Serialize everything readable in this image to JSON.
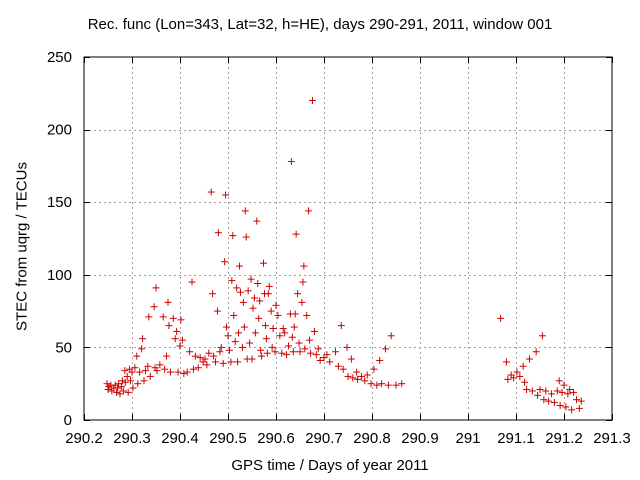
{
  "chart_data": {
    "type": "scatter",
    "title": "Rec. func (Lon=343, Lat=32, h=HE), days 290-291, 2011, window 001",
    "xlabel": "GPS time / Days of year 2011",
    "ylabel": "STEC from uqrg / TECUs",
    "xlim": [
      290.2,
      291.3
    ],
    "ylim": [
      0,
      250
    ],
    "xticks": [
      290.2,
      290.3,
      290.4,
      290.5,
      290.6,
      290.7,
      290.8,
      290.9,
      291,
      291.1,
      291.2,
      291.3
    ],
    "xtick_labels": [
      "290.2",
      "290.3",
      "290.4",
      "290.5",
      "290.6",
      "290.7",
      "290.8",
      "290.9",
      "291",
      "291.1",
      "291.2",
      "291.3"
    ],
    "yticks": [
      0,
      50,
      100,
      150,
      200,
      250
    ],
    "ytick_labels": [
      "0",
      "50",
      "100",
      "150",
      "200",
      "250"
    ],
    "grid": true,
    "marker": "+",
    "color": "#cc0000",
    "points": [
      [
        290.248,
        25
      ],
      [
        290.25,
        21
      ],
      [
        290.252,
        23
      ],
      [
        290.256,
        24
      ],
      [
        290.258,
        20
      ],
      [
        290.262,
        22
      ],
      [
        290.265,
        24
      ],
      [
        290.268,
        19
      ],
      [
        290.27,
        22
      ],
      [
        290.272,
        25
      ],
      [
        290.275,
        18
      ],
      [
        290.278,
        23
      ],
      [
        290.28,
        27
      ],
      [
        290.282,
        20
      ],
      [
        290.285,
        34
      ],
      [
        290.286,
        26
      ],
      [
        290.29,
        30
      ],
      [
        290.292,
        19
      ],
      [
        290.295,
        35
      ],
      [
        290.297,
        27
      ],
      [
        290.3,
        33
      ],
      [
        290.302,
        22
      ],
      [
        290.306,
        36
      ],
      [
        290.31,
        44
      ],
      [
        290.312,
        25
      ],
      [
        290.316,
        33
      ],
      [
        290.32,
        49
      ],
      [
        290.322,
        56
      ],
      [
        290.325,
        27
      ],
      [
        290.328,
        34
      ],
      [
        290.333,
        37
      ],
      [
        290.335,
        71
      ],
      [
        290.338,
        30
      ],
      [
        290.346,
        78
      ],
      [
        290.348,
        36
      ],
      [
        290.35,
        91
      ],
      [
        290.352,
        34
      ],
      [
        290.358,
        38
      ],
      [
        290.365,
        71
      ],
      [
        290.368,
        35
      ],
      [
        290.372,
        44
      ],
      [
        290.375,
        81
      ],
      [
        290.377,
        65
      ],
      [
        290.38,
        33
      ],
      [
        290.386,
        70
      ],
      [
        290.39,
        56
      ],
      [
        290.393,
        61
      ],
      [
        290.396,
        33
      ],
      [
        290.4,
        51
      ],
      [
        290.402,
        69
      ],
      [
        290.405,
        55
      ],
      [
        290.408,
        32
      ],
      [
        290.415,
        33
      ],
      [
        290.42,
        47
      ],
      [
        290.425,
        95
      ],
      [
        290.428,
        35
      ],
      [
        290.432,
        44
      ],
      [
        290.438,
        36
      ],
      [
        290.442,
        43
      ],
      [
        290.448,
        40
      ],
      [
        290.452,
        42
      ],
      [
        290.456,
        38
      ],
      [
        290.46,
        46
      ],
      [
        290.465,
        157
      ],
      [
        290.468,
        87
      ],
      [
        290.47,
        44
      ],
      [
        290.474,
        40
      ],
      [
        290.478,
        75
      ],
      [
        290.48,
        129
      ],
      [
        290.483,
        47
      ],
      [
        290.486,
        50
      ],
      [
        290.49,
        39
      ],
      [
        290.493,
        109
      ],
      [
        290.495,
        155
      ],
      [
        290.497,
        64
      ],
      [
        290.5,
        58
      ],
      [
        290.503,
        48
      ],
      [
        290.506,
        40
      ],
      [
        290.508,
        96
      ],
      [
        290.51,
        127
      ],
      [
        290.512,
        72
      ],
      [
        290.515,
        54
      ],
      [
        290.518,
        91
      ],
      [
        290.52,
        40
      ],
      [
        290.522,
        60
      ],
      [
        290.524,
        106
      ],
      [
        290.526,
        88
      ],
      [
        290.53,
        50
      ],
      [
        290.532,
        81
      ],
      [
        290.534,
        64
      ],
      [
        290.536,
        144
      ],
      [
        290.538,
        126
      ],
      [
        290.54,
        42
      ],
      [
        290.542,
        89
      ],
      [
        290.545,
        53
      ],
      [
        290.548,
        97
      ],
      [
        290.55,
        42
      ],
      [
        290.552,
        77
      ],
      [
        290.555,
        84
      ],
      [
        290.557,
        60
      ],
      [
        290.56,
        137
      ],
      [
        290.562,
        94
      ],
      [
        290.564,
        70
      ],
      [
        290.566,
        82
      ],
      [
        290.568,
        48
      ],
      [
        290.57,
        44
      ],
      [
        290.574,
        108
      ],
      [
        290.576,
        87
      ],
      [
        290.578,
        65
      ],
      [
        290.58,
        56
      ],
      [
        290.582,
        46
      ],
      [
        290.584,
        87
      ],
      [
        290.586,
        92
      ],
      [
        290.59,
        75
      ],
      [
        290.592,
        50
      ],
      [
        290.594,
        63
      ],
      [
        290.598,
        47
      ],
      [
        290.6,
        79
      ],
      [
        290.604,
        72
      ],
      [
        290.608,
        58
      ],
      [
        290.612,
        46
      ],
      [
        290.615,
        63
      ],
      [
        290.618,
        60
      ],
      [
        290.622,
        45
      ],
      [
        290.626,
        51
      ],
      [
        290.63,
        73
      ],
      [
        290.632,
        178
      ],
      [
        290.634,
        57
      ],
      [
        290.636,
        47
      ],
      [
        290.638,
        64
      ],
      [
        290.64,
        73
      ],
      [
        290.642,
        128
      ],
      [
        290.645,
        87
      ],
      [
        290.648,
        53
      ],
      [
        290.65,
        47
      ],
      [
        290.654,
        81
      ],
      [
        290.656,
        95
      ],
      [
        290.658,
        106
      ],
      [
        290.66,
        49
      ],
      [
        290.664,
        72
      ],
      [
        290.668,
        144
      ],
      [
        290.67,
        55
      ],
      [
        290.672,
        46
      ],
      [
        290.676,
        220
      ],
      [
        290.68,
        61
      ],
      [
        290.684,
        45
      ],
      [
        290.688,
        49
      ],
      [
        290.692,
        41
      ],
      [
        290.7,
        43
      ],
      [
        290.706,
        45
      ],
      [
        290.712,
        40
      ],
      [
        290.724,
        47
      ],
      [
        290.73,
        37
      ],
      [
        290.736,
        65
      ],
      [
        290.74,
        35
      ],
      [
        290.748,
        50
      ],
      [
        290.75,
        30
      ],
      [
        290.757,
        42
      ],
      [
        290.76,
        29
      ],
      [
        290.768,
        33
      ],
      [
        290.77,
        28
      ],
      [
        290.778,
        30
      ],
      [
        290.785,
        27
      ],
      [
        290.79,
        31
      ],
      [
        290.798,
        25
      ],
      [
        290.804,
        35
      ],
      [
        290.81,
        24
      ],
      [
        290.816,
        41
      ],
      [
        290.82,
        25
      ],
      [
        290.828,
        49
      ],
      [
        290.834,
        24
      ],
      [
        290.84,
        58
      ],
      [
        290.85,
        24
      ],
      [
        290.862,
        25
      ],
      [
        291.068,
        70
      ],
      [
        291.08,
        40
      ],
      [
        291.083,
        28
      ],
      [
        291.09,
        31
      ],
      [
        291.095,
        29
      ],
      [
        291.102,
        33
      ],
      [
        291.108,
        30
      ],
      [
        291.115,
        37
      ],
      [
        291.118,
        26
      ],
      [
        291.122,
        21
      ],
      [
        291.128,
        42
      ],
      [
        291.134,
        20
      ],
      [
        291.142,
        47
      ],
      [
        291.145,
        17
      ],
      [
        291.15,
        21
      ],
      [
        291.155,
        58
      ],
      [
        291.158,
        14
      ],
      [
        291.162,
        20
      ],
      [
        291.168,
        13
      ],
      [
        291.174,
        18
      ],
      [
        291.18,
        12
      ],
      [
        291.186,
        20
      ],
      [
        291.19,
        27
      ],
      [
        291.192,
        10
      ],
      [
        291.196,
        19
      ],
      [
        291.2,
        24
      ],
      [
        291.204,
        9
      ],
      [
        291.208,
        18
      ],
      [
        291.212,
        21
      ],
      [
        291.216,
        7
      ],
      [
        291.22,
        19
      ],
      [
        291.226,
        14
      ],
      [
        291.232,
        8
      ],
      [
        291.236,
        13
      ]
    ]
  }
}
